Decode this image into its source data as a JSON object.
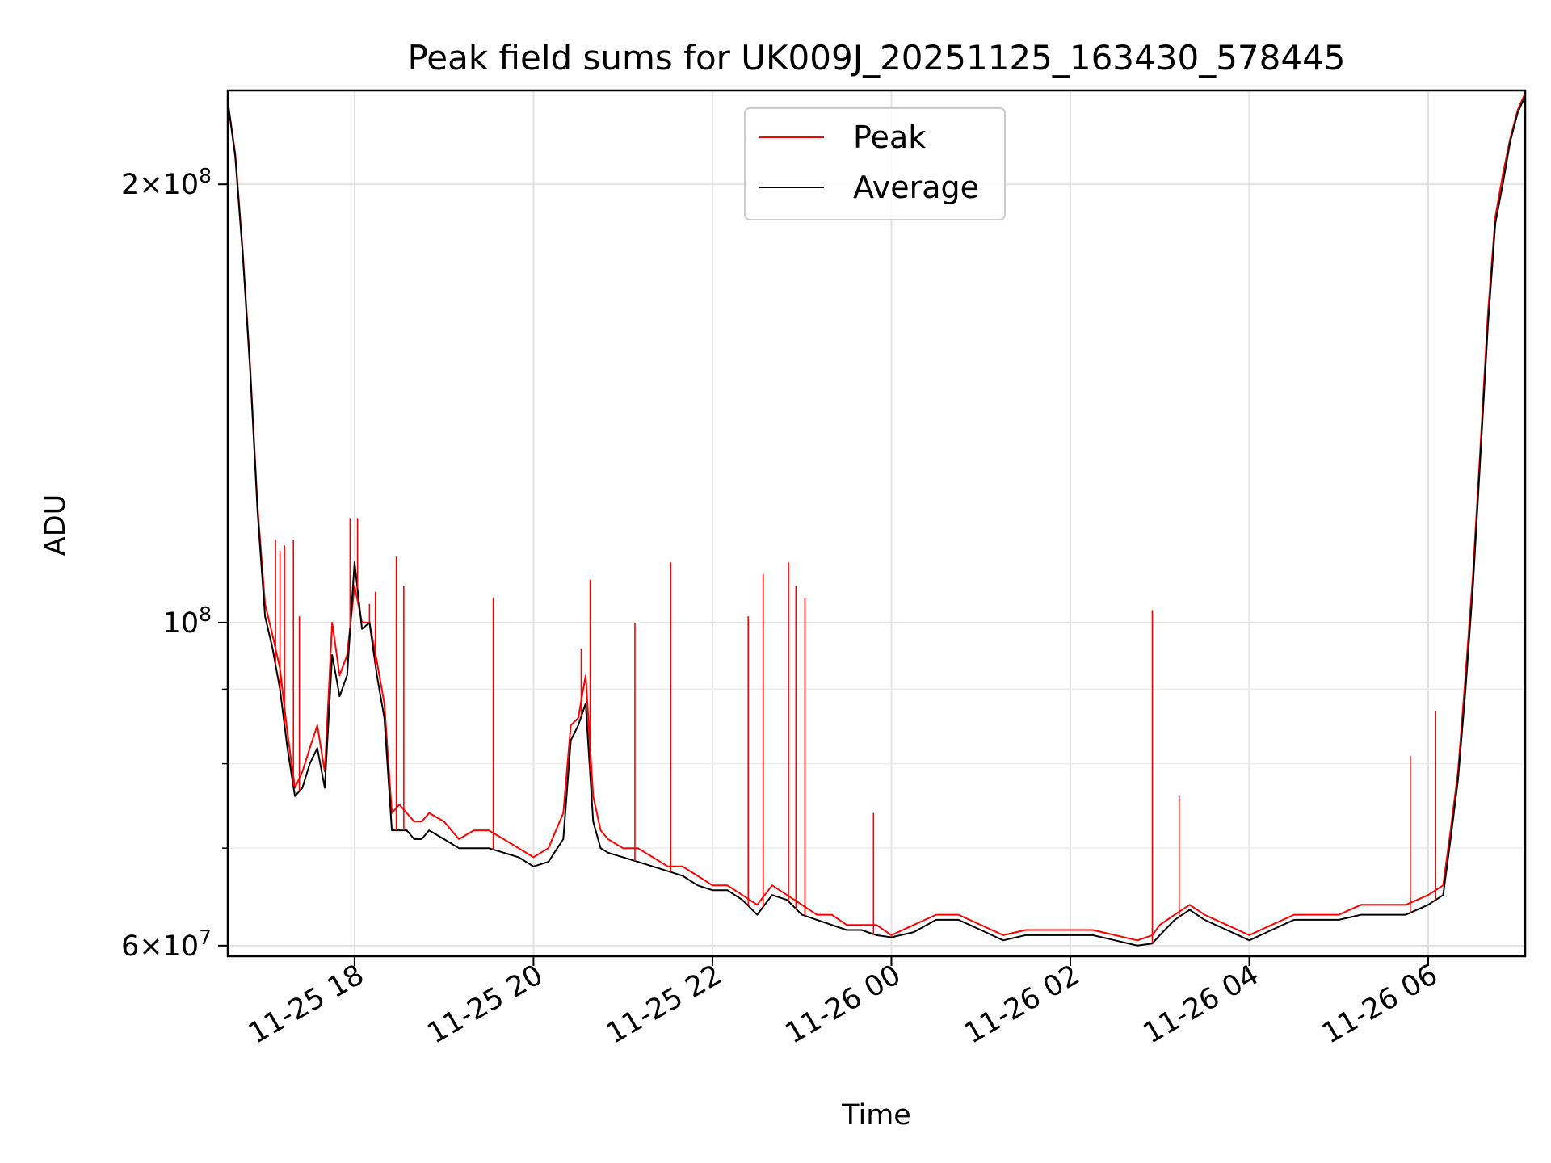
{
  "chart_data": {
    "type": "line",
    "title": "Peak field sums for UK009J_20251125_163430_578445",
    "xlabel": "Time",
    "ylabel": "ADU",
    "yscale": "log",
    "grid": true,
    "legend_position": "top-center",
    "xlim": [
      "2025-11-25 16:35",
      "2025-11-26 07:05"
    ],
    "ylim": [
      59000000,
      232000000
    ],
    "x_ticks": [
      {
        "value": "2025-11-25 18:00",
        "label": "11-25 18"
      },
      {
        "value": "2025-11-25 20:00",
        "label": "11-25 20"
      },
      {
        "value": "2025-11-25 22:00",
        "label": "11-25 22"
      },
      {
        "value": "2025-11-26 00:00",
        "label": "11-26 00"
      },
      {
        "value": "2025-11-26 02:00",
        "label": "11-26 02"
      },
      {
        "value": "2025-11-26 04:00",
        "label": "11-26 04"
      },
      {
        "value": "2025-11-26 06:00",
        "label": "11-26 06"
      }
    ],
    "y_major_ticks": [
      {
        "value": 60000000,
        "label_mantissa": "6",
        "label_base": "10",
        "label_exp": "7"
      },
      {
        "value": 100000000,
        "label_mantissa": "",
        "label_base": "10",
        "label_exp": "8"
      },
      {
        "value": 200000000,
        "label_mantissa": "2",
        "label_base": "10",
        "label_exp": "8"
      }
    ],
    "y_minor_ticks": [
      70000000,
      80000000,
      90000000
    ],
    "series": [
      {
        "name": "Peak",
        "color": "#ff0000",
        "x": [
          "2025-11-25 16:35",
          "2025-11-25 16:40",
          "2025-11-25 16:45",
          "2025-11-25 16:50",
          "2025-11-25 16:55",
          "2025-11-25 17:00",
          "2025-11-25 17:05",
          "2025-11-25 17:10",
          "2025-11-25 17:15",
          "2025-11-25 17:20",
          "2025-11-25 17:25",
          "2025-11-25 17:30",
          "2025-11-25 17:35",
          "2025-11-25 17:40",
          "2025-11-25 17:45",
          "2025-11-25 17:50",
          "2025-11-25 17:55",
          "2025-11-25 18:00",
          "2025-11-25 18:05",
          "2025-11-25 18:10",
          "2025-11-25 18:15",
          "2025-11-25 18:20",
          "2025-11-25 18:25",
          "2025-11-25 18:30",
          "2025-11-25 18:35",
          "2025-11-25 18:40",
          "2025-11-25 18:45",
          "2025-11-25 18:50",
          "2025-11-25 19:00",
          "2025-11-25 19:10",
          "2025-11-25 19:20",
          "2025-11-25 19:30",
          "2025-11-25 19:40",
          "2025-11-25 19:50",
          "2025-11-25 20:00",
          "2025-11-25 20:10",
          "2025-11-25 20:20",
          "2025-11-25 20:25",
          "2025-11-25 20:30",
          "2025-11-25 20:35",
          "2025-11-25 20:40",
          "2025-11-25 20:45",
          "2025-11-25 20:50",
          "2025-11-25 21:00",
          "2025-11-25 21:10",
          "2025-11-25 21:20",
          "2025-11-25 21:30",
          "2025-11-25 21:40",
          "2025-11-25 21:50",
          "2025-11-25 22:00",
          "2025-11-25 22:10",
          "2025-11-25 22:20",
          "2025-11-25 22:30",
          "2025-11-25 22:40",
          "2025-11-25 22:50",
          "2025-11-25 23:00",
          "2025-11-25 23:10",
          "2025-11-25 23:20",
          "2025-11-25 23:30",
          "2025-11-25 23:40",
          "2025-11-25 23:50",
          "2025-11-26 00:00",
          "2025-11-26 00:15",
          "2025-11-26 00:30",
          "2025-11-26 00:45",
          "2025-11-26 01:00",
          "2025-11-26 01:15",
          "2025-11-26 01:30",
          "2025-11-26 01:45",
          "2025-11-26 02:00",
          "2025-11-26 02:15",
          "2025-11-26 02:30",
          "2025-11-26 02:45",
          "2025-11-26 02:55",
          "2025-11-26 03:00",
          "2025-11-26 03:10",
          "2025-11-26 03:20",
          "2025-11-26 03:30",
          "2025-11-26 03:45",
          "2025-11-26 04:00",
          "2025-11-26 04:15",
          "2025-11-26 04:30",
          "2025-11-26 04:45",
          "2025-11-26 05:00",
          "2025-11-26 05:15",
          "2025-11-26 05:30",
          "2025-11-26 05:45",
          "2025-11-26 06:00",
          "2025-11-26 06:10",
          "2025-11-26 06:15",
          "2025-11-26 06:20",
          "2025-11-26 06:25",
          "2025-11-26 06:30",
          "2025-11-26 06:35",
          "2025-11-26 06:40",
          "2025-11-26 06:45",
          "2025-11-26 06:50",
          "2025-11-26 06:55",
          "2025-11-26 07:00",
          "2025-11-26 07:05"
        ],
        "y": [
          228000000,
          210000000,
          180000000,
          150000000,
          120000000,
          103000000,
          98000000,
          93000000,
          84000000,
          77000000,
          79000000,
          82000000,
          85000000,
          79000000,
          100000000,
          92000000,
          95000000,
          106000000,
          100000000,
          100000000,
          94000000,
          88000000,
          74000000,
          75000000,
          74000000,
          73000000,
          73000000,
          74000000,
          73000000,
          71000000,
          72000000,
          72000000,
          71000000,
          70000000,
          69000000,
          70000000,
          74000000,
          85000000,
          86000000,
          92000000,
          76000000,
          72000000,
          71000000,
          70000000,
          70000000,
          69000000,
          68000000,
          68000000,
          67000000,
          66000000,
          66000000,
          65000000,
          64000000,
          66000000,
          65000000,
          64000000,
          63000000,
          63000000,
          62000000,
          62000000,
          62000000,
          61000000,
          62000000,
          63000000,
          63000000,
          62000000,
          61000000,
          61500000,
          61500000,
          61500000,
          61500000,
          61000000,
          60500000,
          61000000,
          62000000,
          63000000,
          64000000,
          63000000,
          62000000,
          61000000,
          62000000,
          63000000,
          63000000,
          63000000,
          64000000,
          64000000,
          64000000,
          65000000,
          66000000,
          72000000,
          79000000,
          92000000,
          108000000,
          132000000,
          163000000,
          190000000,
          203000000,
          215000000,
          225000000,
          231000000
        ]
      },
      {
        "name": "Average",
        "color": "#000000",
        "x": [
          "2025-11-25 16:35",
          "2025-11-25 16:40",
          "2025-11-25 16:45",
          "2025-11-25 16:50",
          "2025-11-25 16:55",
          "2025-11-25 17:00",
          "2025-11-25 17:05",
          "2025-11-25 17:10",
          "2025-11-25 17:15",
          "2025-11-25 17:20",
          "2025-11-25 17:25",
          "2025-11-25 17:30",
          "2025-11-25 17:35",
          "2025-11-25 17:40",
          "2025-11-25 17:45",
          "2025-11-25 17:50",
          "2025-11-25 17:55",
          "2025-11-25 18:00",
          "2025-11-25 18:05",
          "2025-11-25 18:10",
          "2025-11-25 18:15",
          "2025-11-25 18:20",
          "2025-11-25 18:25",
          "2025-11-25 18:30",
          "2025-11-25 18:35",
          "2025-11-25 18:40",
          "2025-11-25 18:45",
          "2025-11-25 18:50",
          "2025-11-25 19:00",
          "2025-11-25 19:10",
          "2025-11-25 19:20",
          "2025-11-25 19:30",
          "2025-11-25 19:40",
          "2025-11-25 19:50",
          "2025-11-25 20:00",
          "2025-11-25 20:10",
          "2025-11-25 20:20",
          "2025-11-25 20:25",
          "2025-11-25 20:30",
          "2025-11-25 20:35",
          "2025-11-25 20:40",
          "2025-11-25 20:45",
          "2025-11-25 20:50",
          "2025-11-25 21:00",
          "2025-11-25 21:10",
          "2025-11-25 21:20",
          "2025-11-25 21:30",
          "2025-11-25 21:40",
          "2025-11-25 21:50",
          "2025-11-25 22:00",
          "2025-11-25 22:10",
          "2025-11-25 22:20",
          "2025-11-25 22:30",
          "2025-11-25 22:40",
          "2025-11-25 22:50",
          "2025-11-25 23:00",
          "2025-11-25 23:10",
          "2025-11-25 23:20",
          "2025-11-25 23:30",
          "2025-11-25 23:40",
          "2025-11-25 23:50",
          "2025-11-26 00:00",
          "2025-11-26 00:15",
          "2025-11-26 00:30",
          "2025-11-26 00:45",
          "2025-11-26 01:00",
          "2025-11-26 01:15",
          "2025-11-26 01:30",
          "2025-11-26 01:45",
          "2025-11-26 02:00",
          "2025-11-26 02:15",
          "2025-11-26 02:30",
          "2025-11-26 02:45",
          "2025-11-26 02:55",
          "2025-11-26 03:00",
          "2025-11-26 03:10",
          "2025-11-26 03:20",
          "2025-11-26 03:30",
          "2025-11-26 03:45",
          "2025-11-26 04:00",
          "2025-11-26 04:15",
          "2025-11-26 04:30",
          "2025-11-26 04:45",
          "2025-11-26 05:00",
          "2025-11-26 05:15",
          "2025-11-26 05:30",
          "2025-11-26 05:45",
          "2025-11-26 06:00",
          "2025-11-26 06:10",
          "2025-11-26 06:15",
          "2025-11-26 06:20",
          "2025-11-26 06:25",
          "2025-11-26 06:30",
          "2025-11-26 06:35",
          "2025-11-26 06:40",
          "2025-11-26 06:45",
          "2025-11-26 06:50",
          "2025-11-26 06:55",
          "2025-11-26 07:00",
          "2025-11-26 07:05"
        ],
        "y": [
          228000000,
          209000000,
          179000000,
          149000000,
          119000000,
          101000000,
          96000000,
          90000000,
          82000000,
          76000000,
          77000000,
          80000000,
          82000000,
          77000000,
          95000000,
          89000000,
          92000000,
          110000000,
          99000000,
          100000000,
          92000000,
          86000000,
          72000000,
          72000000,
          72000000,
          71000000,
          71000000,
          72000000,
          71000000,
          70000000,
          70000000,
          70000000,
          69500000,
          69000000,
          68000000,
          68500000,
          71000000,
          83000000,
          85000000,
          88000000,
          73000000,
          70000000,
          69500000,
          69000000,
          68500000,
          68000000,
          67500000,
          67000000,
          66000000,
          65500000,
          65500000,
          64500000,
          63000000,
          65000000,
          64500000,
          63000000,
          62500000,
          62000000,
          61500000,
          61500000,
          61000000,
          60800000,
          61300000,
          62500000,
          62500000,
          61500000,
          60500000,
          61000000,
          61000000,
          61000000,
          61000000,
          60500000,
          60000000,
          60200000,
          61000000,
          62500000,
          63500000,
          62500000,
          61500000,
          60500000,
          61500000,
          62500000,
          62500000,
          62500000,
          63000000,
          63000000,
          63000000,
          64000000,
          65000000,
          71000000,
          78000000,
          90000000,
          106000000,
          130000000,
          160000000,
          188000000,
          200000000,
          214000000,
          224000000,
          230000000
        ]
      }
    ],
    "spikes": [
      {
        "series": "Peak",
        "x": "2025-11-25 17:07",
        "y": 114000000
      },
      {
        "series": "Peak",
        "x": "2025-11-25 17:10",
        "y": 112000000
      },
      {
        "series": "Peak",
        "x": "2025-11-25 17:13",
        "y": 113000000
      },
      {
        "series": "Peak",
        "x": "2025-11-25 17:19",
        "y": 114000000
      },
      {
        "series": "Peak",
        "x": "2025-11-25 17:23",
        "y": 101000000
      },
      {
        "series": "Peak",
        "x": "2025-11-25 17:57",
        "y": 118000000
      },
      {
        "series": "Peak",
        "x": "2025-11-25 18:02",
        "y": 118000000
      },
      {
        "series": "Peak",
        "x": "2025-11-25 18:10",
        "y": 103000000
      },
      {
        "series": "Peak",
        "x": "2025-11-25 18:14",
        "y": 105000000
      },
      {
        "series": "Peak",
        "x": "2025-11-25 18:28",
        "y": 111000000
      },
      {
        "series": "Peak",
        "x": "2025-11-25 18:33",
        "y": 106000000
      },
      {
        "series": "Peak",
        "x": "2025-11-25 19:33",
        "y": 104000000
      },
      {
        "series": "Peak",
        "x": "2025-11-25 20:32",
        "y": 96000000
      },
      {
        "series": "Peak",
        "x": "2025-11-25 20:38",
        "y": 107000000
      },
      {
        "series": "Peak",
        "x": "2025-11-25 21:08",
        "y": 100000000
      },
      {
        "series": "Peak",
        "x": "2025-11-25 21:32",
        "y": 110000000
      },
      {
        "series": "Peak",
        "x": "2025-11-25 22:24",
        "y": 101000000
      },
      {
        "series": "Peak",
        "x": "2025-11-25 22:34",
        "y": 108000000
      },
      {
        "series": "Peak",
        "x": "2025-11-25 22:51",
        "y": 110000000
      },
      {
        "series": "Peak",
        "x": "2025-11-25 22:56",
        "y": 106000000
      },
      {
        "series": "Peak",
        "x": "2025-11-25 23:02",
        "y": 104000000
      },
      {
        "series": "Peak",
        "x": "2025-11-25 23:48",
        "y": 74000000
      },
      {
        "series": "Peak",
        "x": "2025-11-26 02:55",
        "y": 102000000
      },
      {
        "series": "Peak",
        "x": "2025-11-26 03:13",
        "y": 76000000
      },
      {
        "series": "Peak",
        "x": "2025-11-26 05:48",
        "y": 81000000
      },
      {
        "series": "Peak",
        "x": "2025-11-26 06:05",
        "y": 87000000
      }
    ]
  }
}
